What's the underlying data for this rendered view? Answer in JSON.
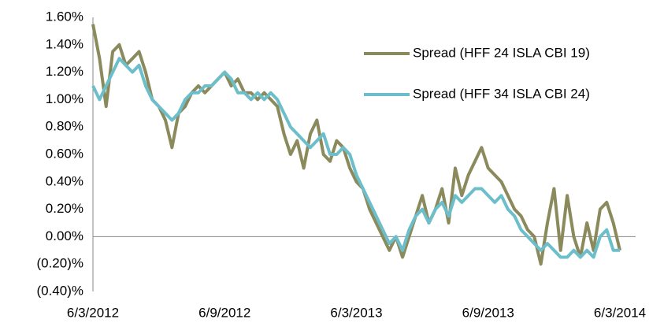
{
  "chart_data": {
    "type": "line",
    "categories": [
      "6/3/2012",
      null,
      null,
      null,
      null,
      null,
      null,
      null,
      null,
      null,
      null,
      null,
      null,
      null,
      null,
      null,
      null,
      null,
      null,
      null,
      "6/9/2012",
      null,
      null,
      null,
      null,
      null,
      null,
      null,
      null,
      null,
      null,
      null,
      null,
      null,
      null,
      null,
      null,
      null,
      null,
      null,
      "6/3/2013",
      null,
      null,
      null,
      null,
      null,
      null,
      null,
      null,
      null,
      null,
      null,
      null,
      null,
      null,
      null,
      null,
      null,
      null,
      null,
      "6/9/2013",
      null,
      null,
      null,
      null,
      null,
      null,
      null,
      null,
      null,
      null,
      null,
      null,
      null,
      null,
      null,
      null,
      null,
      null,
      null,
      "6/3/2014"
    ],
    "series": [
      {
        "name": "Spread (HFF 24 ISLA CBI 19)",
        "color": "#8a8a5c",
        "values": [
          1.55,
          1.3,
          0.95,
          1.35,
          1.4,
          1.25,
          1.3,
          1.35,
          1.2,
          1.0,
          0.95,
          0.85,
          0.65,
          0.9,
          0.95,
          1.05,
          1.1,
          1.05,
          1.1,
          1.15,
          1.2,
          1.1,
          1.15,
          1.05,
          1.05,
          1.0,
          1.05,
          1.0,
          0.95,
          0.75,
          0.6,
          0.7,
          0.5,
          0.75,
          0.85,
          0.6,
          0.55,
          0.7,
          0.65,
          0.5,
          0.4,
          0.35,
          0.2,
          0.1,
          0.0,
          -0.1,
          0.0,
          -0.15,
          0.0,
          0.15,
          0.3,
          0.1,
          0.2,
          0.35,
          0.1,
          0.5,
          0.3,
          0.45,
          0.55,
          0.65,
          0.5,
          0.45,
          0.4,
          0.3,
          0.2,
          0.15,
          0.05,
          0.0,
          -0.2,
          0.1,
          0.35,
          -0.1,
          0.3,
          0.0,
          -0.15,
          0.1,
          -0.1,
          0.2,
          0.25,
          0.1,
          -0.1
        ]
      },
      {
        "name": "Spread (HFF 34 ISLA CBI 24)",
        "color": "#6cbfca",
        "values": [
          1.1,
          1.0,
          1.1,
          1.2,
          1.3,
          1.25,
          1.2,
          1.25,
          1.1,
          1.0,
          0.95,
          0.9,
          0.85,
          0.9,
          1.0,
          1.05,
          1.05,
          1.1,
          1.1,
          1.15,
          1.2,
          1.15,
          1.05,
          1.05,
          1.0,
          1.05,
          1.0,
          1.05,
          1.0,
          0.9,
          0.8,
          0.75,
          0.7,
          0.65,
          0.7,
          0.75,
          0.6,
          0.6,
          0.65,
          0.6,
          0.45,
          0.35,
          0.25,
          0.15,
          0.05,
          -0.05,
          0.0,
          -0.1,
          0.05,
          0.15,
          0.2,
          0.1,
          0.2,
          0.25,
          0.15,
          0.3,
          0.25,
          0.3,
          0.35,
          0.35,
          0.3,
          0.25,
          0.3,
          0.2,
          0.15,
          0.05,
          0.0,
          -0.05,
          -0.1,
          -0.05,
          -0.1,
          -0.15,
          -0.15,
          -0.1,
          -0.15,
          -0.1,
          -0.15,
          0.0,
          0.05,
          -0.1,
          -0.1
        ]
      }
    ],
    "ylim": [
      -0.4,
      1.6
    ],
    "yticks": [
      {
        "value": -0.4,
        "label": "(0.40)%"
      },
      {
        "value": -0.2,
        "label": "(0.20)%"
      },
      {
        "value": 0,
        "label": "0.00%"
      },
      {
        "value": 0.2,
        "label": "0.20%"
      },
      {
        "value": 0.4,
        "label": "0.40%"
      },
      {
        "value": 0.6,
        "label": "0.60%"
      },
      {
        "value": 0.8,
        "label": "0.80%"
      },
      {
        "value": 1.0,
        "label": "1.00%"
      },
      {
        "value": 1.2,
        "label": "1.20%"
      },
      {
        "value": 1.4,
        "label": "1.40%"
      },
      {
        "value": 1.6,
        "label": "1.60%"
      }
    ],
    "legend": "upper right"
  }
}
